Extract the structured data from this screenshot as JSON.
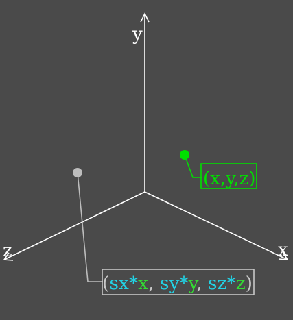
{
  "colors": {
    "background": "#4a4a4a",
    "axis": "#ffffff",
    "point_original": "#00e000",
    "point_scaled": "#bdbdbd",
    "scale_factor": "#22d3e6",
    "coordinate": "#33dd33",
    "label_box_scaled": "#c8c8c8"
  },
  "axes": {
    "x_label": "x",
    "y_label": "y",
    "z_label": "z"
  },
  "original_point": {
    "label": "(x,y,z)"
  },
  "scaled_point": {
    "open_paren": "(",
    "sx": "sx*",
    "x": "x",
    "comma1": ",",
    "sy": "sy*",
    "y": "y",
    "comma2": ",",
    "sz": "sz*",
    "z": "z",
    "close_paren": ")"
  }
}
